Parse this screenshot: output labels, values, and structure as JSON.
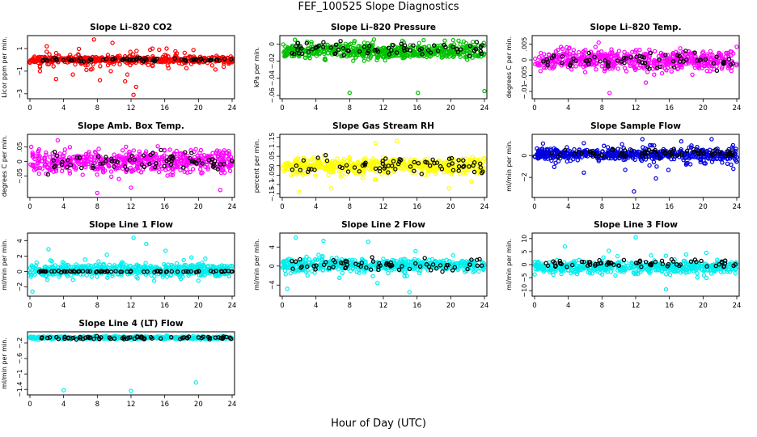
{
  "title": "FEF_100525  Slope Diagnostics",
  "xlabel": "Hour of Day (UTC)",
  "chart_data": [
    {
      "type": "scatter",
      "title": "Slope Li–820 CO2",
      "ylabel": "Licor ppm per min.",
      "xlim": [
        0,
        24
      ],
      "ylim": [
        -3.3,
        2.0
      ],
      "xticks": [
        "0",
        "4",
        "8",
        "12",
        "16",
        "20",
        "24"
      ],
      "yticks": [
        -3,
        -1,
        1
      ],
      "color": "#ff0000",
      "seed": 11,
      "center": 0,
      "spread": 0.25,
      "noise": 0.9,
      "outliers": [
        [
          2.0,
          1.2
        ],
        [
          3.1,
          -1.7
        ],
        [
          5.1,
          -1.3
        ],
        [
          7.6,
          1.8
        ],
        [
          8.3,
          -1.8
        ],
        [
          9.6,
          -1.0
        ],
        [
          11.3,
          -1.9
        ],
        [
          12.3,
          -3.1
        ],
        [
          12.6,
          -2.4
        ],
        [
          9.8,
          1.5
        ]
      ],
      "black": {
        "center": 0,
        "spread": 0.15
      }
    },
    {
      "type": "scatter",
      "title": "Slope Li–820 Pressure",
      "ylabel": "kPa per min.",
      "xlim": [
        0,
        24
      ],
      "ylim": [
        -0.062,
        0.008
      ],
      "xticks": [
        "0",
        "4",
        "8",
        "12",
        "16",
        "20",
        "24"
      ],
      "yticks": [
        -0.06,
        -0.04,
        -0.02,
        0.0
      ],
      "color": "#00c000",
      "seed": 23,
      "center": -0.008,
      "spread": 0.009,
      "noise": 0.01,
      "outliers": [
        [
          8.0,
          -0.057
        ],
        [
          16.1,
          -0.057
        ],
        [
          24.0,
          -0.055
        ],
        [
          1.5,
          0.005
        ],
        [
          19.3,
          0.004
        ]
      ],
      "black": {
        "center": -0.006,
        "spread": 0.007
      }
    },
    {
      "type": "scatter",
      "title": "Slope Li–820 Temp.",
      "ylabel": "degrees C per min.",
      "xlim": [
        0,
        24
      ],
      "ylim": [
        -0.0118,
        0.0072
      ],
      "xticks": [
        "0",
        "4",
        "8",
        "12",
        "16",
        "20",
        "24"
      ],
      "yticks": [
        -0.01,
        -0.005,
        0.0,
        0.005
      ],
      "color": "#ff00ff",
      "seed": 37,
      "center": 0.0,
      "spread": 0.003,
      "noise": 0.004,
      "outliers": [
        [
          7.6,
          0.0055
        ],
        [
          8.9,
          -0.0105
        ],
        [
          13.2,
          -0.0072
        ],
        [
          3.3,
          0.0035
        ]
      ],
      "black": {
        "center": 0.0,
        "spread": 0.0025
      }
    },
    {
      "type": "scatter",
      "title": "Slope Amb. Box Temp.",
      "ylabel": "degrees C per min.",
      "xlim": [
        0,
        24
      ],
      "ylim": [
        -0.118,
        0.088
      ],
      "xticks": [
        "0",
        "4",
        "8",
        "12",
        "16",
        "20",
        "24"
      ],
      "yticks": [
        -0.05,
        0.0,
        0.05
      ],
      "color": "#ff00ff",
      "seed": 41,
      "center": 0.0,
      "spread": 0.035,
      "noise": 0.05,
      "outliers": [
        [
          8.0,
          -0.108
        ],
        [
          12.0,
          -0.09
        ],
        [
          3.3,
          0.073
        ],
        [
          22.6,
          -0.098
        ]
      ],
      "black": {
        "center": 0.0,
        "spread": 0.03
      }
    },
    {
      "type": "scatter",
      "title": "Slope Gas Stream RH",
      "ylabel": "percent per min.",
      "xlim": [
        0,
        24
      ],
      "ylim": [
        -0.16,
        0.158
      ],
      "xticks": [
        "0",
        "4",
        "8",
        "12",
        "16",
        "20",
        "24"
      ],
      "yticks": [
        -0.15,
        -0.1,
        -0.05,
        0.0,
        0.05,
        0.1,
        0.15
      ],
      "color": "#ffff00",
      "seed": 53,
      "center": 0.0,
      "spread": 0.04,
      "noise": 0.06,
      "outliers": [
        [
          2.0,
          -0.14
        ],
        [
          5.8,
          -0.12
        ],
        [
          11.1,
          0.12
        ],
        [
          19.8,
          -0.12
        ],
        [
          13.6,
          0.13
        ]
      ],
      "black": {
        "center": 0.0,
        "spread": 0.04
      }
    },
    {
      "type": "scatter",
      "title": "Slope Sample Flow",
      "ylabel": "ml/min per min.",
      "xlim": [
        0,
        24
      ],
      "ylim": [
        -3.7,
        1.8
      ],
      "xticks": [
        "0",
        "4",
        "8",
        "12",
        "16",
        "20",
        "24"
      ],
      "yticks": [
        -2,
        0
      ],
      "color": "#0000dd",
      "seed": 67,
      "center": 0.1,
      "spread": 0.45,
      "noise": 1.2,
      "outliers": [
        [
          11.8,
          -3.3
        ],
        [
          12.8,
          1.5
        ],
        [
          14.4,
          -2.1
        ],
        [
          17.4,
          1.3
        ],
        [
          1.0,
          1.1
        ]
      ],
      "black": {
        "center": 0.2,
        "spread": 0.4
      }
    },
    {
      "type": "scatter",
      "title": "Slope Line 1 Flow",
      "ylabel": "ml/min per min.",
      "xlim": [
        0,
        24
      ],
      "ylim": [
        -3.0,
        4.8
      ],
      "xticks": [
        "0",
        "4",
        "8",
        "12",
        "16",
        "20",
        "24"
      ],
      "yticks": [
        -2,
        0,
        2,
        4
      ],
      "color": "#00eeee",
      "seed": 71,
      "center": 0.2,
      "spread": 0.7,
      "noise": 1.4,
      "outliers": [
        [
          12.3,
          4.4
        ],
        [
          13.8,
          3.6
        ],
        [
          0.3,
          -2.6
        ],
        [
          16.1,
          2.7
        ],
        [
          2.2,
          2.9
        ]
      ],
      "black": {
        "center": 0.0,
        "spread": 0.08
      }
    },
    {
      "type": "scatter",
      "title": "Slope Line 2 Flow",
      "ylabel": "ml/min per min.",
      "xlim": [
        0,
        24
      ],
      "ylim": [
        -6.0,
        6.6
      ],
      "xticks": [
        "0",
        "4",
        "8",
        "12",
        "16",
        "20",
        "24"
      ],
      "yticks": [
        -4,
        0,
        4
      ],
      "color": "#00eeee",
      "seed": 83,
      "center": 0.2,
      "spread": 1.2,
      "noise": 2.3,
      "outliers": [
        [
          1.6,
          6.0
        ],
        [
          4.9,
          5.3
        ],
        [
          10.2,
          5.1
        ],
        [
          15.1,
          -5.5
        ],
        [
          11.3,
          -3.6
        ],
        [
          0.6,
          -4.8
        ]
      ],
      "black": {
        "center": 0.3,
        "spread": 1.3
      }
    },
    {
      "type": "scatter",
      "title": "Slope Line 3 Flow",
      "ylabel": "ml/min per min.",
      "xlim": [
        0,
        24
      ],
      "ylim": [
        -11.5,
        11.5
      ],
      "xticks": [
        "0",
        "4",
        "8",
        "12",
        "16",
        "20",
        "24"
      ],
      "yticks": [
        -10,
        -5,
        0,
        5,
        10
      ],
      "color": "#00eeee",
      "seed": 97,
      "center": -1.0,
      "spread": 2.0,
      "noise": 4.5,
      "outliers": [
        [
          12.0,
          10.5
        ],
        [
          3.6,
          7.0
        ],
        [
          15.6,
          -9.5
        ],
        [
          8.8,
          5.3
        ]
      ],
      "black": {
        "center": 0.5,
        "spread": 1.5
      }
    },
    {
      "type": "scatter",
      "title": "Slope Line 4 (LT) Flow",
      "ylabel": "ml/min per min.",
      "xlim": [
        0,
        24
      ],
      "ylim": [
        -1.5,
        0.05
      ],
      "xticks": [
        "0",
        "4",
        "8",
        "12",
        "16",
        "20",
        "24"
      ],
      "yticks": [
        -1.4,
        -1.0,
        -0.6,
        -0.2
      ],
      "color": "#00eeee",
      "seed": 101,
      "center": -0.06,
      "spread": 0.03,
      "noise": 0.05,
      "outliers": [
        [
          4.0,
          -1.42
        ],
        [
          12.0,
          -1.44
        ],
        [
          19.7,
          -1.22
        ]
      ],
      "black": {
        "center": -0.07,
        "spread": 0.04
      }
    }
  ]
}
